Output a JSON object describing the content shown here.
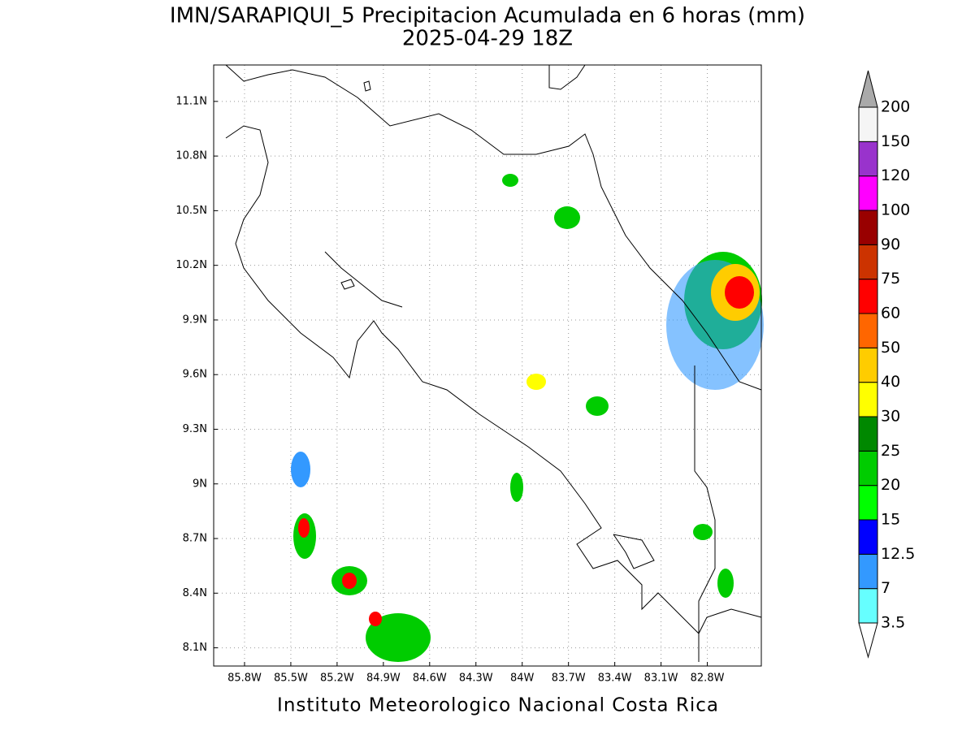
{
  "chart_data": {
    "type": "map",
    "title": "IMN/SARAPIQUI_5 Precipitacion Acumulada en 6 horas (mm)",
    "subtitle": "2025-04-29 18Z",
    "footer": "Instituto Meteorologico Nacional Costa Rica",
    "xlim": [
      -86.0,
      -82.45
    ],
    "ylim": [
      8.0,
      11.3
    ],
    "grid": true,
    "xticks": [
      {
        "value": -85.8,
        "label": "85.8W"
      },
      {
        "value": -85.5,
        "label": "85.5W"
      },
      {
        "value": -85.2,
        "label": "85.2W"
      },
      {
        "value": -84.9,
        "label": "84.9W"
      },
      {
        "value": -84.6,
        "label": "84.6W"
      },
      {
        "value": -84.3,
        "label": "84.3W"
      },
      {
        "value": -84.0,
        "label": "84W"
      },
      {
        "value": -83.7,
        "label": "83.7W"
      },
      {
        "value": -83.4,
        "label": "83.4W"
      },
      {
        "value": -83.1,
        "label": "83.1W"
      },
      {
        "value": -82.8,
        "label": "82.8W"
      }
    ],
    "yticks": [
      {
        "value": 11.1,
        "label": "11.1N"
      },
      {
        "value": 10.8,
        "label": "10.8N"
      },
      {
        "value": 10.5,
        "label": "10.5N"
      },
      {
        "value": 10.2,
        "label": "10.2N"
      },
      {
        "value": 9.9,
        "label": "9.9N"
      },
      {
        "value": 9.6,
        "label": "9.6N"
      },
      {
        "value": 9.3,
        "label": "9.3N"
      },
      {
        "value": 9.0,
        "label": "9N"
      },
      {
        "value": 8.7,
        "label": "8.7N"
      },
      {
        "value": 8.4,
        "label": "8.4N"
      },
      {
        "value": 8.1,
        "label": "8.1N"
      }
    ],
    "colorbar": {
      "levels": [
        3.5,
        7,
        12.5,
        15,
        20,
        25,
        30,
        40,
        50,
        60,
        75,
        90,
        100,
        120,
        150,
        200
      ],
      "colors": [
        "#66ffff",
        "#3399ff",
        "#0000ff",
        "#00ff00",
        "#00cc00",
        "#008800",
        "#ffff00",
        "#ffcc00",
        "#ff6600",
        "#ff0000",
        "#cc3300",
        "#990000",
        "#ff00ff",
        "#9933cc",
        "#f5f5f5"
      ],
      "over_color": "#aaaaaa",
      "under_color": "#ffffff"
    }
  }
}
